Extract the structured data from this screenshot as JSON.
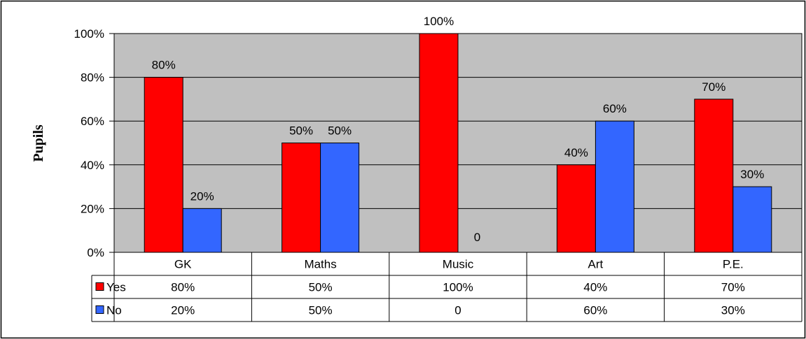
{
  "chart_data": {
    "type": "bar",
    "title": "",
    "xlabel": "",
    "ylabel": "Pupils",
    "ylim": [
      0,
      100
    ],
    "yticks": [
      "0%",
      "20%",
      "40%",
      "60%",
      "80%",
      "100%"
    ],
    "ytick_values": [
      0,
      20,
      40,
      60,
      80,
      100
    ],
    "categories": [
      "GK",
      "Maths",
      "Music",
      "Art",
      "P.E."
    ],
    "series": [
      {
        "name": "Yes",
        "color": "#ff0000",
        "values": [
          80,
          50,
          100,
          40,
          70
        ],
        "labels": [
          "80%",
          "50%",
          "100%",
          "40%",
          "70%"
        ]
      },
      {
        "name": "No",
        "color": "#3366ff",
        "values": [
          20,
          50,
          0,
          60,
          30
        ],
        "labels": [
          "20%",
          "50%",
          "0",
          "60%",
          "30%"
        ]
      }
    ],
    "plot_background": "#c0c0c0",
    "grid": true,
    "legend": "data-table"
  }
}
